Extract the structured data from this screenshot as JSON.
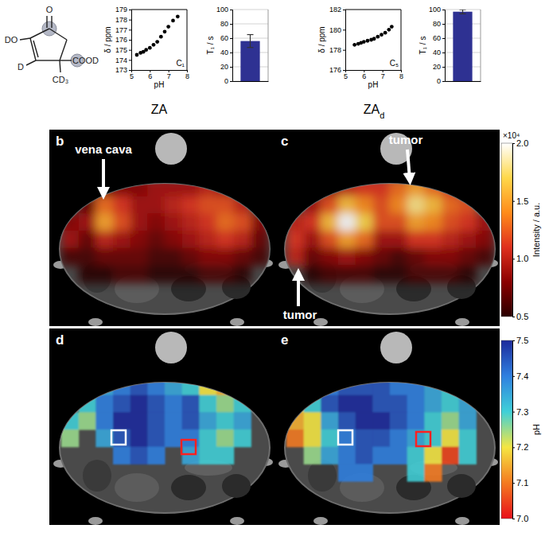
{
  "figure": {
    "molecule": {
      "labels": [
        "O",
        "DO",
        "D",
        "CD₃",
        "COOD"
      ]
    },
    "group_labels": [
      {
        "text": "ZA"
      },
      {
        "text": "ZA",
        "subscript": "d"
      }
    ]
  },
  "chart_data": [
    {
      "type": "scatter",
      "x": [
        5.3,
        5.5,
        5.65,
        5.8,
        6.0,
        6.2,
        6.4,
        6.6,
        6.8,
        7.0,
        7.25,
        7.5
      ],
      "values": [
        174.5,
        174.7,
        174.8,
        175.0,
        175.2,
        175.5,
        175.8,
        176.3,
        176.8,
        177.3,
        177.9,
        178.3
      ],
      "xlim": [
        5,
        8
      ],
      "xticks": [
        5,
        6,
        7,
        8
      ],
      "ylim": [
        173,
        179
      ],
      "yticks": [
        173,
        174,
        175,
        176,
        177,
        178,
        179
      ],
      "x_label": "pH",
      "y_label": "δ / ppm",
      "annotation": "C₁",
      "color": "#000000",
      "marker": "circle"
    },
    {
      "type": "bar",
      "categories": [
        null
      ],
      "values": [
        56
      ],
      "errors": [
        9
      ],
      "ylim": [
        0,
        100
      ],
      "yticks": [
        0,
        20,
        40,
        60,
        80,
        100
      ],
      "y_label": "T₁ / s",
      "color": "#2e3192",
      "grid": true
    },
    {
      "type": "scatter",
      "x": [
        5.5,
        5.7,
        5.85,
        6.0,
        6.2,
        6.4,
        6.55,
        6.75,
        6.95,
        7.15,
        7.35,
        7.5
      ],
      "values": [
        178.5,
        178.6,
        178.7,
        178.8,
        178.9,
        179.0,
        179.1,
        179.3,
        179.5,
        179.7,
        180.0,
        180.3
      ],
      "xlim": [
        5,
        8
      ],
      "xticks": [
        5,
        6,
        7,
        8
      ],
      "ylim": [
        176,
        182
      ],
      "yticks": [
        176,
        178,
        180,
        182
      ],
      "x_label": "pH",
      "y_label": "δ / ppm",
      "annotation": "C₅",
      "color": "#000000",
      "marker": "circle"
    },
    {
      "type": "bar",
      "categories": [
        null
      ],
      "values": [
        97
      ],
      "errors": [
        3
      ],
      "ylim": [
        0,
        100
      ],
      "yticks": [
        0,
        20,
        40,
        60,
        80,
        100
      ],
      "y_label": "T₁ / s",
      "color": "#2e3192",
      "grid": true
    },
    {
      "type": "heatmap",
      "panel": "b",
      "annotations": [
        {
          "text": "vena cava"
        }
      ],
      "cells": [
        [
          null,
          null,
          0.7,
          0.8,
          0.8,
          0.9,
          0.9,
          0.9,
          1.0,
          0.9,
          null,
          null
        ],
        [
          null,
          0.7,
          1.3,
          1.1,
          0.9,
          0.9,
          1.0,
          1.1,
          1.2,
          1.2,
          1.0,
          null
        ],
        [
          0.8,
          0.9,
          1.5,
          1.2,
          0.9,
          0.8,
          0.9,
          1.0,
          1.1,
          1.3,
          1.2,
          0.8
        ],
        [
          0.9,
          0.7,
          1.0,
          0.9,
          0.8,
          0.7,
          0.8,
          0.9,
          1.0,
          1.1,
          1.0,
          0.7
        ],
        [
          0.6,
          0.6,
          0.7,
          0.7,
          0.7,
          0.6,
          0.6,
          0.7,
          0.8,
          0.8,
          0.7,
          0.6
        ],
        [
          null,
          0.5,
          0.5,
          0.6,
          0.6,
          0.5,
          0.5,
          0.5,
          0.6,
          0.6,
          0.5,
          null
        ]
      ]
    },
    {
      "type": "heatmap",
      "panel": "c",
      "annotations": [
        {
          "text": "tumor"
        },
        {
          "text": "tumor"
        }
      ],
      "cells": [
        [
          null,
          null,
          0.8,
          1.0,
          1.1,
          1.1,
          1.3,
          1.5,
          1.3,
          1.1,
          null,
          null
        ],
        [
          null,
          0.9,
          1.2,
          1.6,
          1.4,
          1.2,
          1.4,
          1.8,
          1.6,
          1.3,
          1.2,
          null
        ],
        [
          1.0,
          1.1,
          1.6,
          2.0,
          1.7,
          1.2,
          1.2,
          1.5,
          1.4,
          1.2,
          1.1,
          0.9
        ],
        [
          1.1,
          0.9,
          1.2,
          1.5,
          1.3,
          0.9,
          0.9,
          1.1,
          1.1,
          1.0,
          0.9,
          0.8
        ],
        [
          1.0,
          0.7,
          0.8,
          0.9,
          0.8,
          0.7,
          0.6,
          0.7,
          0.8,
          0.8,
          0.7,
          0.6
        ],
        [
          null,
          0.5,
          0.6,
          0.6,
          0.6,
          0.5,
          0.5,
          0.6,
          0.6,
          0.6,
          0.5,
          null
        ]
      ],
      "colorbar": {
        "title": "Intensity / a.u.",
        "multiplier": "×10⁴",
        "range": [
          0.5,
          2.0
        ],
        "ticks": [
          {
            "value": 0.5,
            "label": "0.5"
          },
          {
            "value": 1.0,
            "label": "1.0"
          },
          {
            "value": 1.5,
            "label": "1.5"
          },
          {
            "value": 2.0,
            "label": "2.0"
          }
        ]
      }
    },
    {
      "type": "heatmap",
      "panel": "d",
      "cells": [
        [
          null,
          null,
          7.35,
          7.4,
          7.45,
          7.4,
          7.35,
          7.3,
          7.2,
          7.15,
          null,
          null
        ],
        [
          null,
          7.3,
          7.4,
          7.45,
          7.5,
          7.45,
          7.4,
          7.45,
          7.3,
          7.25,
          7.3,
          null
        ],
        [
          7.3,
          7.25,
          7.4,
          7.5,
          7.5,
          7.45,
          7.4,
          7.45,
          7.35,
          7.3,
          7.35,
          null
        ],
        [
          7.25,
          null,
          7.35,
          7.45,
          7.5,
          7.45,
          7.4,
          7.4,
          7.3,
          7.25,
          7.3,
          null
        ],
        [
          null,
          null,
          null,
          7.4,
          7.45,
          7.4,
          null,
          7.35,
          7.3,
          7.3,
          null,
          null
        ],
        [
          null,
          null,
          null,
          null,
          null,
          null,
          null,
          null,
          null,
          null,
          null,
          null
        ]
      ]
    },
    {
      "type": "heatmap",
      "panel": "e",
      "cells": [
        [
          null,
          null,
          7.4,
          7.45,
          7.45,
          7.45,
          7.4,
          7.4,
          7.35,
          7.3,
          null,
          null
        ],
        [
          7.2,
          7.3,
          7.45,
          7.5,
          7.5,
          7.45,
          7.45,
          7.4,
          7.35,
          7.3,
          7.35,
          null
        ],
        [
          7.15,
          7.2,
          7.35,
          7.45,
          7.5,
          7.5,
          7.45,
          7.4,
          7.3,
          7.25,
          7.35,
          null
        ],
        [
          7.1,
          7.2,
          7.3,
          7.4,
          7.45,
          7.45,
          7.4,
          7.35,
          7.3,
          7.2,
          7.3,
          null
        ],
        [
          null,
          7.25,
          7.35,
          7.4,
          7.45,
          7.4,
          7.4,
          7.3,
          7.2,
          7.05,
          7.3,
          null
        ],
        [
          null,
          null,
          null,
          7.4,
          7.4,
          null,
          null,
          7.3,
          7.1,
          null,
          null,
          null
        ]
      ],
      "colorbar": {
        "title": "pH",
        "range": [
          7.0,
          7.5
        ],
        "ticks": [
          {
            "value": 7.0,
            "label": "7.0"
          },
          {
            "value": 7.1,
            "label": "7.1"
          },
          {
            "value": 7.2,
            "label": "7.2"
          },
          {
            "value": 7.3,
            "label": "7.3"
          },
          {
            "value": 7.4,
            "label": "7.4"
          },
          {
            "value": 7.5,
            "label": "7.5"
          }
        ]
      }
    }
  ]
}
